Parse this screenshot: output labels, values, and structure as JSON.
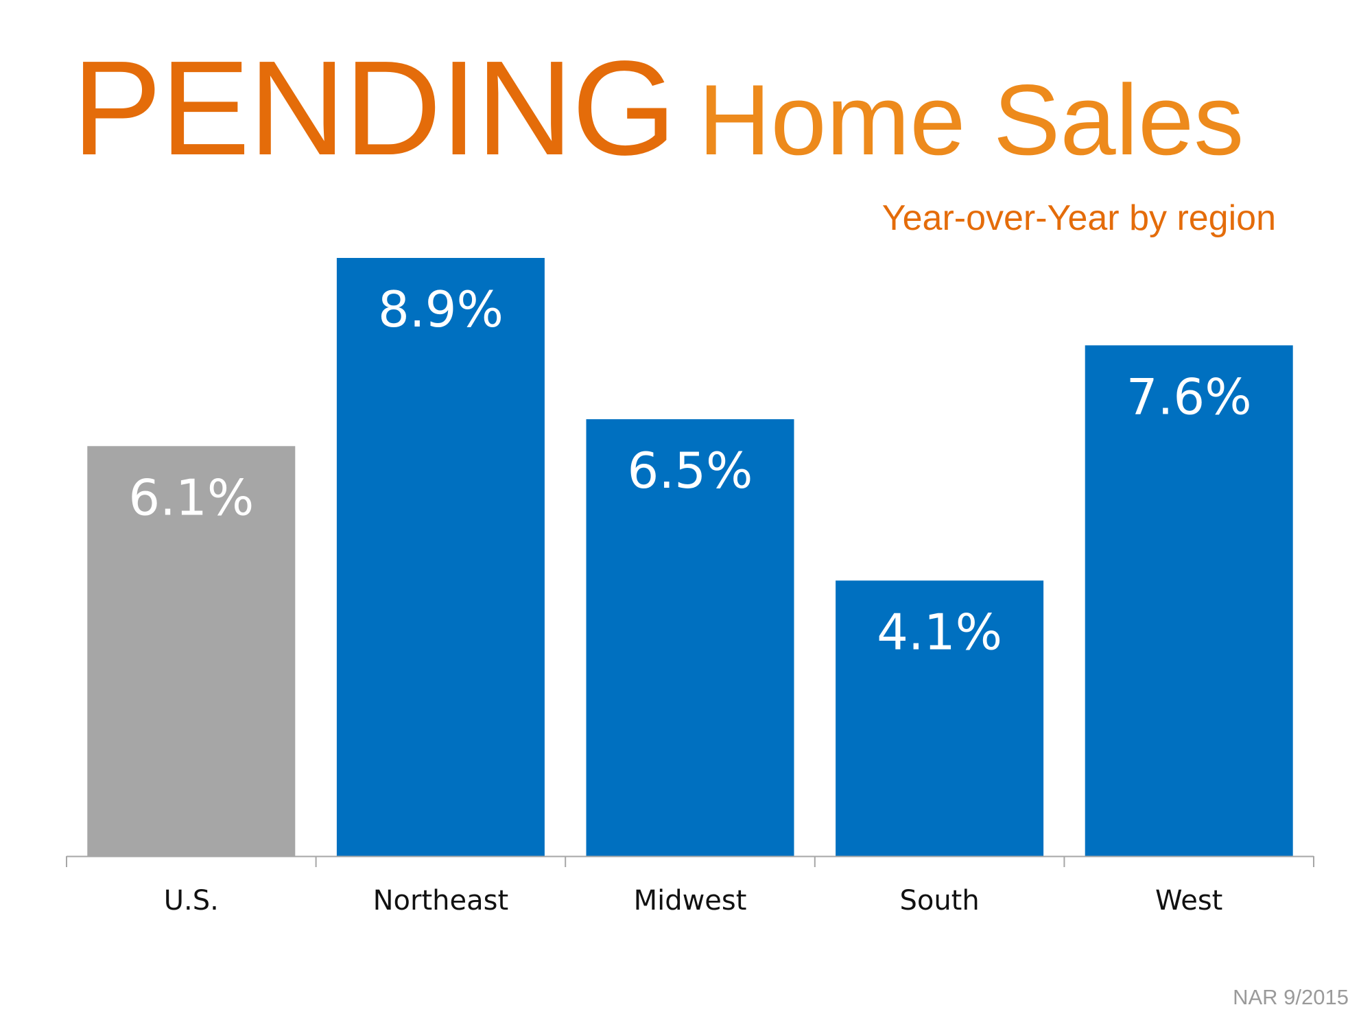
{
  "title": {
    "main": "PENDING",
    "rest": "Home Sales"
  },
  "subtitle": "Year-over-Year by region",
  "source": "NAR 9/2015",
  "colors": {
    "title": "#E46C0A",
    "us_bar": "#A6A6A6",
    "region_bar": "#0070C0",
    "label_text": "#ffffff",
    "category_text": "#111111",
    "axis": "#A6A6A6"
  },
  "chart_data": {
    "type": "bar",
    "title": "PENDING Home Sales",
    "subtitle": "Year-over-Year by region",
    "categories": [
      "U.S.",
      "Northeast",
      "Midwest",
      "South",
      "West"
    ],
    "values": [
      6.1,
      8.9,
      6.5,
      4.1,
      7.6
    ],
    "data_labels": [
      "6.1%",
      "8.9%",
      "6.5%",
      "4.1%",
      "7.6%"
    ],
    "bar_colors": [
      "#A6A6A6",
      "#0070C0",
      "#0070C0",
      "#0070C0",
      "#0070C0"
    ],
    "ylim": [
      0,
      8.9
    ],
    "grid": false,
    "legend": "none",
    "xlabel": "",
    "ylabel": ""
  }
}
